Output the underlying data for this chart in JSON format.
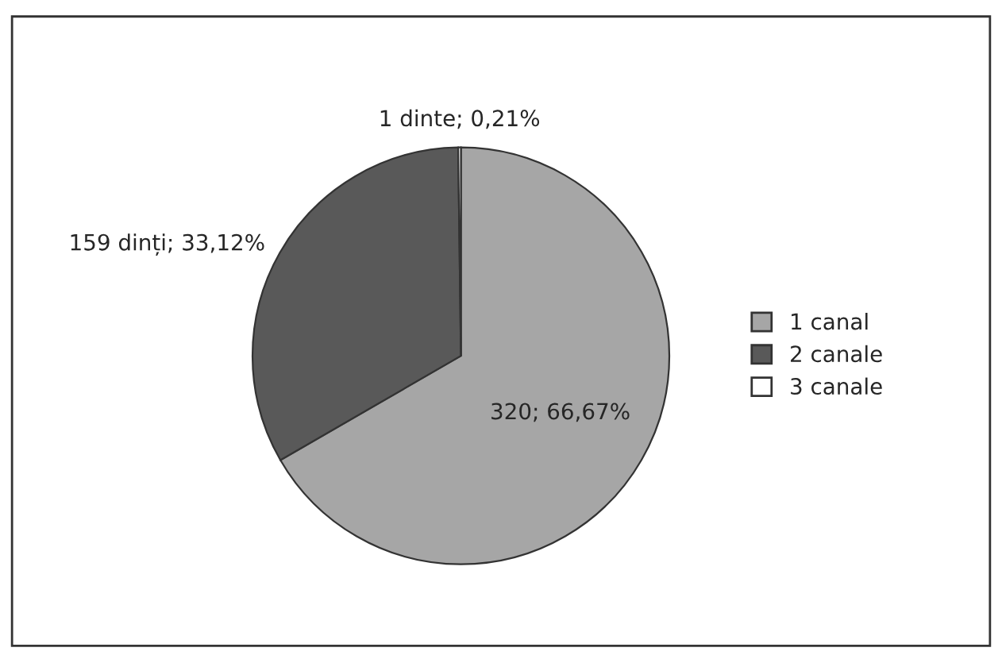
{
  "chart_data": {
    "type": "pie",
    "categories": [
      "1 canal",
      "2 canale",
      "3 canale"
    ],
    "values": [
      320,
      159,
      1
    ],
    "colors": [
      "#a6a6a6",
      "#595959",
      "#ffffff"
    ],
    "value_labels": [
      "320; 66,67%",
      "159 dinți; 33,12%",
      "1 dinte; 0,21%"
    ],
    "legend": "right"
  }
}
